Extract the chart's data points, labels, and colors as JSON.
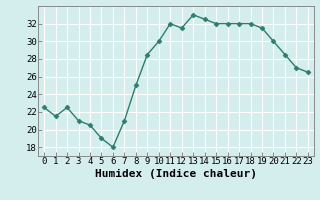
{
  "x": [
    0,
    1,
    2,
    3,
    4,
    5,
    6,
    7,
    8,
    9,
    10,
    11,
    12,
    13,
    14,
    15,
    16,
    17,
    18,
    19,
    20,
    21,
    22,
    23
  ],
  "y": [
    22.5,
    21.5,
    22.5,
    21.0,
    20.5,
    19.0,
    18.0,
    21.0,
    25.0,
    28.5,
    30.0,
    32.0,
    31.5,
    33.0,
    32.5,
    32.0,
    32.0,
    32.0,
    32.0,
    31.5,
    30.0,
    28.5,
    27.0,
    26.5
  ],
  "line_color": "#2e7d6e",
  "marker": "D",
  "marker_size": 2.5,
  "linewidth": 1.0,
  "xlabel": "Humidex (Indice chaleur)",
  "xlim": [
    -0.5,
    23.5
  ],
  "ylim": [
    17.0,
    34.0
  ],
  "yticks": [
    18,
    20,
    22,
    24,
    26,
    28,
    30,
    32
  ],
  "xticks": [
    0,
    1,
    2,
    3,
    4,
    5,
    6,
    7,
    8,
    9,
    10,
    11,
    12,
    13,
    14,
    15,
    16,
    17,
    18,
    19,
    20,
    21,
    22,
    23
  ],
  "xtick_labels": [
    "0",
    "1",
    "2",
    "3",
    "4",
    "5",
    "6",
    "7",
    "8",
    "9",
    "10",
    "11",
    "12",
    "13",
    "14",
    "15",
    "16",
    "17",
    "18",
    "19",
    "20",
    "21",
    "22",
    "23"
  ],
  "bg_color": "#d4eeee",
  "grid_color": "#ffffff",
  "spine_color": "#888888",
  "tick_fontsize": 6.5,
  "xlabel_fontsize": 8
}
